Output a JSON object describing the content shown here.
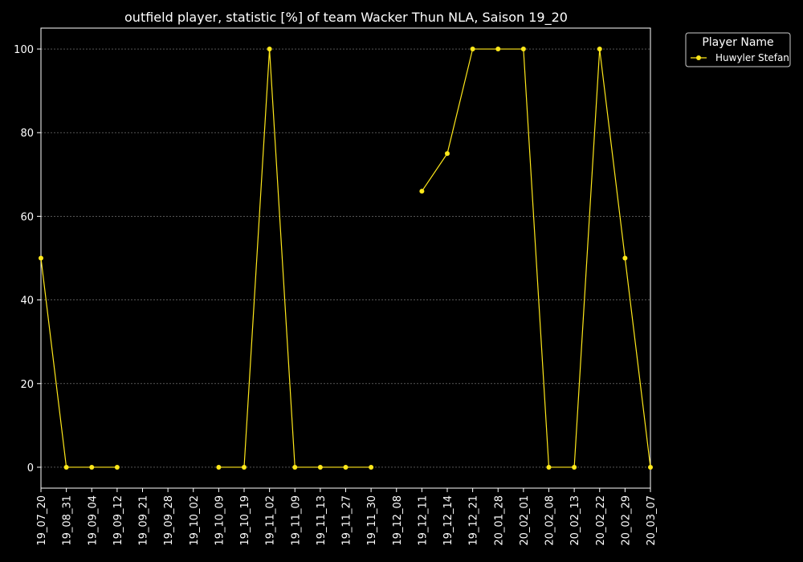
{
  "chart_data": {
    "type": "line",
    "title": "outfield player, statistic [%] of team Wacker Thun NLA, Saison 19_20",
    "xlabel": "",
    "ylabel": "",
    "ylim": [
      -5,
      105
    ],
    "yticks": [
      0,
      20,
      40,
      60,
      80,
      100
    ],
    "grid": "horizontal-dashed",
    "legend": {
      "title": "Player Name",
      "placement": "outside-top-right"
    },
    "categories": [
      "19_07_20",
      "19_08_31",
      "19_09_04",
      "19_09_12",
      "19_09_21",
      "19_09_28",
      "19_10_02",
      "19_10_09",
      "19_10_19",
      "19_11_02",
      "19_11_09",
      "19_11_13",
      "19_11_27",
      "19_11_30",
      "19_12_08",
      "19_12_11",
      "19_12_14",
      "19_12_21",
      "20_01_28",
      "20_02_01",
      "20_02_08",
      "20_02_13",
      "20_02_22",
      "20_02_29",
      "20_03_07"
    ],
    "series": [
      {
        "name": "Huwyler Stefan",
        "color": "#ffe81a",
        "values": [
          50,
          0,
          0,
          0,
          null,
          null,
          null,
          0,
          0,
          100,
          0,
          0,
          0,
          0,
          null,
          66,
          75,
          100,
          100,
          100,
          0,
          0,
          100,
          50,
          0
        ]
      }
    ]
  },
  "colors": {
    "background": "#000000",
    "axis": "#ffffff",
    "grid": "#888888",
    "series": "#ffe81a"
  }
}
